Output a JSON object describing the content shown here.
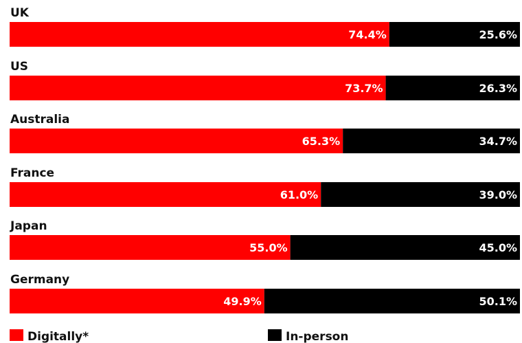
{
  "chart_data": {
    "type": "bar",
    "orientation": "horizontal",
    "stacked": true,
    "categories": [
      "UK",
      "US",
      "Australia",
      "France",
      "Japan",
      "Germany"
    ],
    "series": [
      {
        "name": "Digitally*",
        "color": "#ff0000",
        "values": [
          74.4,
          73.7,
          65.3,
          61.0,
          55.0,
          49.9
        ],
        "labels": [
          "74.4%",
          "73.7%",
          "65.3%",
          "61.0%",
          "55.0%",
          "49.9%"
        ]
      },
      {
        "name": "In-person",
        "color": "#000000",
        "values": [
          25.6,
          26.3,
          34.7,
          39.0,
          45.0,
          50.1
        ],
        "labels": [
          "25.6%",
          "26.3%",
          "34.7%",
          "39.0%",
          "45.0%",
          "50.1%"
        ]
      }
    ],
    "xlim": [
      0,
      100
    ],
    "legend": "bottom",
    "grid": false
  }
}
